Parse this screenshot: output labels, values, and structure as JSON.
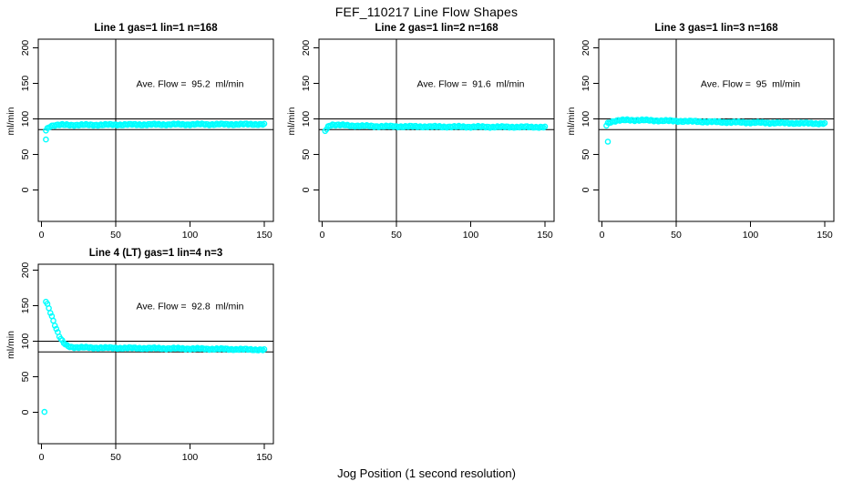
{
  "title": "FEF_110217  Line Flow Shapes",
  "xlabel": "Jog Position (1 second resolution)",
  "point_color": "#00FFFF",
  "axis_color": "#000000",
  "chart_data": [
    {
      "type": "scatter",
      "title": "Line 1 gas=1 lin=1 n=168",
      "annotation": "Ave. Flow =  95.2  ml/min",
      "ave_flow": 95.2,
      "n": 168,
      "ylabel": "ml/min",
      "xlim": [
        0,
        150
      ],
      "ylim": [
        0,
        200
      ],
      "x_ticks": [
        0,
        50,
        100,
        150
      ],
      "y_ticks": [
        0,
        50,
        100,
        150,
        200
      ],
      "ref_hlines": [
        100,
        85
      ],
      "ref_vline": 50,
      "outliers": [
        [
          3,
          71
        ]
      ],
      "curve": [
        [
          3,
          84
        ],
        [
          4,
          86.5
        ],
        [
          5,
          88.5
        ],
        [
          6,
          90
        ],
        [
          8,
          91
        ],
        [
          12,
          91.5
        ],
        [
          30,
          91.5
        ],
        [
          60,
          92
        ],
        [
          100,
          92.3
        ],
        [
          150,
          92.5
        ]
      ]
    },
    {
      "type": "scatter",
      "title": "Line 2 gas=1 lin=2 n=168",
      "annotation": "Ave. Flow =  91.6  ml/min",
      "ave_flow": 91.6,
      "n": 168,
      "ylabel": "ml/min",
      "xlim": [
        0,
        150
      ],
      "ylim": [
        0,
        200
      ],
      "x_ticks": [
        0,
        50,
        100,
        150
      ],
      "y_ticks": [
        0,
        50,
        100,
        150,
        200
      ],
      "ref_hlines": [
        100,
        85
      ],
      "ref_vline": 50,
      "outliers": [
        [
          2,
          83
        ]
      ],
      "curve": [
        [
          3,
          86
        ],
        [
          4,
          89
        ],
        [
          5,
          91
        ],
        [
          7,
          92
        ],
        [
          10,
          91.5
        ],
        [
          20,
          90.5
        ],
        [
          40,
          89.5
        ],
        [
          80,
          89
        ],
        [
          120,
          88.7
        ],
        [
          150,
          88.5
        ]
      ]
    },
    {
      "type": "scatter",
      "title": "Line 3 gas=1 lin=3 n=168",
      "annotation": "Ave. Flow =  95  ml/min",
      "ave_flow": 95,
      "n": 168,
      "ylabel": "ml/min",
      "xlim": [
        0,
        150
      ],
      "ylim": [
        0,
        200
      ],
      "x_ticks": [
        0,
        50,
        100,
        150
      ],
      "y_ticks": [
        0,
        50,
        100,
        150,
        200
      ],
      "ref_hlines": [
        100,
        85
      ],
      "ref_vline": 50,
      "outliers": [
        [
          4,
          68
        ]
      ],
      "curve": [
        [
          3,
          91
        ],
        [
          4,
          94
        ],
        [
          6,
          96
        ],
        [
          10,
          97.5
        ],
        [
          18,
          98.5
        ],
        [
          30,
          98
        ],
        [
          50,
          97
        ],
        [
          80,
          95.5
        ],
        [
          110,
          94.5
        ],
        [
          150,
          93.5
        ]
      ]
    },
    {
      "type": "scatter",
      "title": "Line 4 (LT) gas=1 lin=4 n=3",
      "annotation": "Ave. Flow =  92.8  ml/min",
      "ave_flow": 92.8,
      "n": 3,
      "ylabel": "ml/min",
      "xlim": [
        0,
        150
      ],
      "ylim": [
        0,
        200
      ],
      "x_ticks": [
        0,
        50,
        100,
        150
      ],
      "y_ticks": [
        0,
        50,
        100,
        150,
        200
      ],
      "ref_hlines": [
        100,
        85
      ],
      "ref_vline": 50,
      "outliers": [
        [
          2,
          0.5
        ]
      ],
      "curve": [
        [
          3,
          156
        ],
        [
          4,
          152
        ],
        [
          5,
          147
        ],
        [
          6,
          141
        ],
        [
          7,
          135
        ],
        [
          8,
          129
        ],
        [
          9,
          123
        ],
        [
          10,
          117
        ],
        [
          11,
          112
        ],
        [
          12,
          107
        ],
        [
          13,
          103
        ],
        [
          14,
          100
        ],
        [
          15,
          97.5
        ],
        [
          16,
          95.5
        ],
        [
          17,
          94
        ],
        [
          18,
          93
        ],
        [
          20,
          92
        ],
        [
          23,
          91.5
        ],
        [
          30,
          91
        ],
        [
          50,
          90.5
        ],
        [
          80,
          90
        ],
        [
          120,
          89
        ],
        [
          150,
          88
        ]
      ]
    }
  ]
}
